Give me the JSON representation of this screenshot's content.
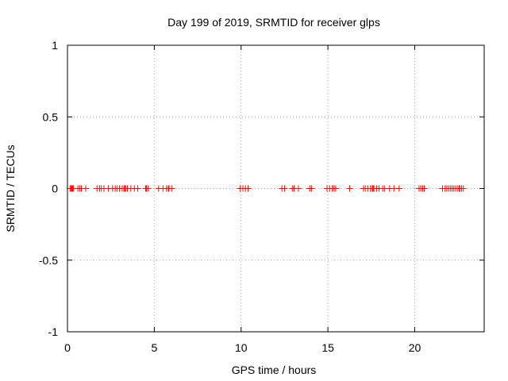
{
  "chart_data": {
    "type": "scatter",
    "title": "Day 199 of 2019, SRMTID for receiver glps",
    "xlabel": "GPS time / hours",
    "ylabel": "SRMTID / TECUs",
    "xlim": [
      0,
      24
    ],
    "ylim": [
      -1,
      1
    ],
    "xticks": [
      0,
      5,
      10,
      15,
      20
    ],
    "xtick_labels": [
      "0",
      "5",
      "10",
      "15",
      "20"
    ],
    "yticks": [
      -1,
      -0.5,
      0,
      0.5,
      1
    ],
    "ytick_labels": [
      "-1",
      "-0.5",
      "0",
      "0.5",
      "1"
    ],
    "grid": true,
    "marker": "+",
    "marker_color": "#ff0000",
    "series": [
      {
        "name": "SRMTID",
        "points": [
          [
            0.15,
            0
          ],
          [
            0.2,
            0
          ],
          [
            0.25,
            0
          ],
          [
            0.3,
            0
          ],
          [
            0.35,
            0
          ],
          [
            0.6,
            0
          ],
          [
            0.7,
            0
          ],
          [
            0.8,
            0
          ],
          [
            1.05,
            0
          ],
          [
            1.7,
            0
          ],
          [
            1.85,
            0
          ],
          [
            1.95,
            0
          ],
          [
            2.1,
            0
          ],
          [
            2.35,
            0
          ],
          [
            2.6,
            0
          ],
          [
            2.75,
            0
          ],
          [
            2.85,
            0
          ],
          [
            3.0,
            0
          ],
          [
            3.15,
            0
          ],
          [
            3.25,
            0
          ],
          [
            3.3,
            0
          ],
          [
            3.35,
            0
          ],
          [
            3.45,
            0
          ],
          [
            3.65,
            0
          ],
          [
            3.85,
            0
          ],
          [
            4.05,
            0
          ],
          [
            4.5,
            0
          ],
          [
            4.55,
            0
          ],
          [
            4.65,
            0
          ],
          [
            5.25,
            0
          ],
          [
            5.5,
            0
          ],
          [
            5.7,
            0
          ],
          [
            5.8,
            0
          ],
          [
            5.85,
            0
          ],
          [
            6.0,
            0
          ],
          [
            9.95,
            0
          ],
          [
            10.1,
            0
          ],
          [
            10.25,
            0
          ],
          [
            10.4,
            0
          ],
          [
            12.35,
            0
          ],
          [
            12.5,
            0
          ],
          [
            12.95,
            0
          ],
          [
            13.05,
            0
          ],
          [
            13.3,
            0
          ],
          [
            13.95,
            0
          ],
          [
            14.05,
            0
          ],
          [
            14.95,
            0
          ],
          [
            15.1,
            0
          ],
          [
            15.25,
            0
          ],
          [
            15.35,
            0
          ],
          [
            15.45,
            0
          ],
          [
            16.25,
            0
          ],
          [
            17.05,
            0
          ],
          [
            17.15,
            0
          ],
          [
            17.3,
            0
          ],
          [
            17.45,
            0
          ],
          [
            17.55,
            0
          ],
          [
            17.6,
            0
          ],
          [
            17.65,
            0
          ],
          [
            17.8,
            0
          ],
          [
            17.95,
            0
          ],
          [
            18.15,
            0
          ],
          [
            18.25,
            0
          ],
          [
            18.55,
            0
          ],
          [
            18.8,
            0
          ],
          [
            19.1,
            0
          ],
          [
            20.25,
            0
          ],
          [
            20.35,
            0
          ],
          [
            20.45,
            0
          ],
          [
            20.55,
            0
          ],
          [
            21.6,
            0
          ],
          [
            21.75,
            0
          ],
          [
            21.85,
            0
          ],
          [
            21.95,
            0
          ],
          [
            22.05,
            0
          ],
          [
            22.15,
            0
          ],
          [
            22.25,
            0
          ],
          [
            22.35,
            0
          ],
          [
            22.45,
            0
          ],
          [
            22.55,
            0
          ],
          [
            22.6,
            0
          ],
          [
            22.7,
            0
          ],
          [
            22.8,
            0
          ]
        ]
      }
    ]
  }
}
